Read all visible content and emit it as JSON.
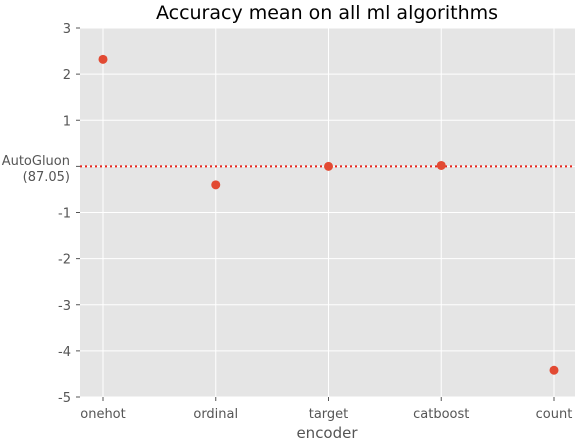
{
  "chart_data": {
    "type": "scatter",
    "title": "Accuracy mean on all ml algorithms",
    "xlabel": "encoder",
    "ylabel": "",
    "categories": [
      "onehot",
      "ordinal",
      "target",
      "catboost",
      "count"
    ],
    "series": [
      {
        "values": [
          2.32,
          -0.4,
          0.0,
          0.02,
          -4.42
        ]
      }
    ],
    "ylim": [
      -5,
      3
    ],
    "yticks": [
      {
        "value": 3,
        "label": "3"
      },
      {
        "value": 2,
        "label": "2"
      },
      {
        "value": 1,
        "label": "1"
      },
      {
        "value": -1,
        "label": "-1"
      },
      {
        "value": -2,
        "label": "-2"
      },
      {
        "value": -3,
        "label": "-3"
      },
      {
        "value": -4,
        "label": "-4"
      },
      {
        "value": -5,
        "label": "-5"
      }
    ],
    "reference_line": {
      "value": 0,
      "label_line1": "AutoGluon",
      "label_line2": "(87.05)"
    },
    "grid": true,
    "style": "ggplot",
    "colors": {
      "marker": "#E24A33",
      "reference_line": "#E8261C",
      "plot_background": "#E5E5E5",
      "grid": "#FFFFFF",
      "tick_text": "#555555",
      "title_text": "#000000"
    }
  }
}
